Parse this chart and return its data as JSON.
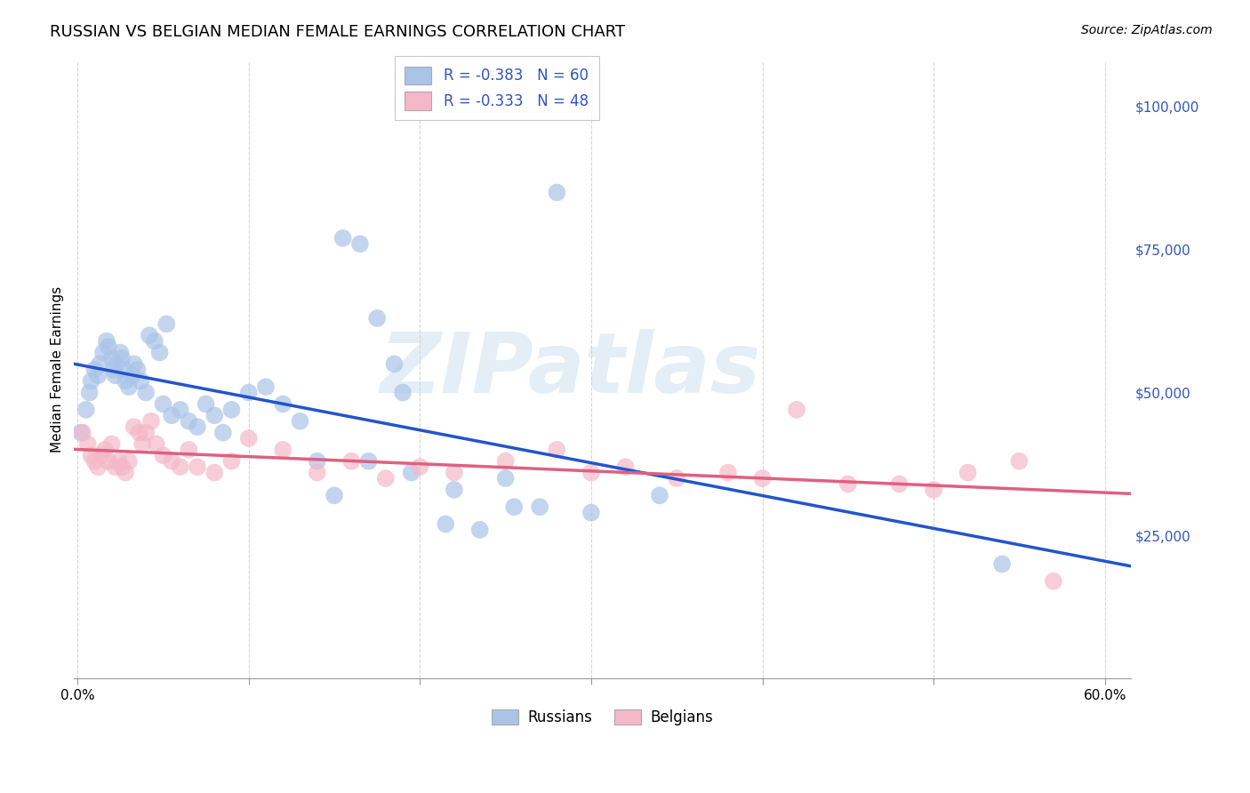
{
  "title": "RUSSIAN VS BELGIAN MEDIAN FEMALE EARNINGS CORRELATION CHART",
  "source": "Source: ZipAtlas.com",
  "ylabel": "Median Female Earnings",
  "ytick_labels": [
    "$25,000",
    "$50,000",
    "$75,000",
    "$100,000"
  ],
  "ytick_values": [
    25000,
    50000,
    75000,
    100000
  ],
  "ymin": 0,
  "ymax": 108000,
  "xmin": -0.002,
  "xmax": 0.615,
  "watermark_text": "ZIPatlas",
  "legend_entries": [
    {
      "label": "R = -0.383   N = 60",
      "color": "#aac4e8"
    },
    {
      "label": "R = -0.333   N = 48",
      "color": "#f4b8c8"
    }
  ],
  "legend_color": "#3355bb",
  "russian_color": "#aac4e8",
  "belgian_color": "#f4b8c8",
  "russian_line_color": "#2255cc",
  "belgian_line_color": "#e06080",
  "dot_size": 200,
  "russians_x": [
    0.002,
    0.005,
    0.007,
    0.008,
    0.01,
    0.012,
    0.013,
    0.015,
    0.017,
    0.018,
    0.02,
    0.021,
    0.022,
    0.023,
    0.025,
    0.026,
    0.027,
    0.028,
    0.03,
    0.032,
    0.033,
    0.035,
    0.037,
    0.04,
    0.042,
    0.045,
    0.048,
    0.05,
    0.052,
    0.055,
    0.06,
    0.065,
    0.07,
    0.075,
    0.08,
    0.085,
    0.09,
    0.1,
    0.11,
    0.12,
    0.13,
    0.14,
    0.15,
    0.17,
    0.19,
    0.22,
    0.25,
    0.27,
    0.28,
    0.3,
    0.155,
    0.165,
    0.175,
    0.185,
    0.195,
    0.215,
    0.235,
    0.255,
    0.34,
    0.54
  ],
  "russians_y": [
    43000,
    47000,
    50000,
    52000,
    54000,
    53000,
    55000,
    57000,
    59000,
    58000,
    56000,
    54000,
    53000,
    55000,
    57000,
    56000,
    54000,
    52000,
    51000,
    53000,
    55000,
    54000,
    52000,
    50000,
    60000,
    59000,
    57000,
    48000,
    62000,
    46000,
    47000,
    45000,
    44000,
    48000,
    46000,
    43000,
    47000,
    50000,
    51000,
    48000,
    45000,
    38000,
    32000,
    38000,
    50000,
    33000,
    35000,
    30000,
    85000,
    29000,
    77000,
    76000,
    63000,
    55000,
    36000,
    27000,
    26000,
    30000,
    32000,
    20000
  ],
  "belgians_x": [
    0.003,
    0.006,
    0.008,
    0.01,
    0.012,
    0.014,
    0.016,
    0.018,
    0.02,
    0.022,
    0.024,
    0.026,
    0.028,
    0.03,
    0.033,
    0.036,
    0.038,
    0.04,
    0.043,
    0.046,
    0.05,
    0.055,
    0.06,
    0.065,
    0.07,
    0.08,
    0.09,
    0.1,
    0.12,
    0.14,
    0.16,
    0.18,
    0.2,
    0.22,
    0.25,
    0.28,
    0.3,
    0.32,
    0.35,
    0.38,
    0.4,
    0.42,
    0.45,
    0.48,
    0.5,
    0.52,
    0.55,
    0.57
  ],
  "belgians_y": [
    43000,
    41000,
    39000,
    38000,
    37000,
    39000,
    40000,
    38000,
    41000,
    37000,
    38000,
    37000,
    36000,
    38000,
    44000,
    43000,
    41000,
    43000,
    45000,
    41000,
    39000,
    38000,
    37000,
    40000,
    37000,
    36000,
    38000,
    42000,
    40000,
    36000,
    38000,
    35000,
    37000,
    36000,
    38000,
    40000,
    36000,
    37000,
    35000,
    36000,
    35000,
    47000,
    34000,
    34000,
    33000,
    36000,
    38000,
    17000
  ],
  "background_color": "#ffffff",
  "grid_color": "#cccccc",
  "title_fontsize": 13,
  "source_fontsize": 10,
  "axis_label_fontsize": 11,
  "tick_fontsize": 11,
  "xtick_vals": [
    0.0,
    0.1,
    0.2,
    0.3,
    0.4,
    0.5,
    0.6
  ],
  "xtick_labels_show": [
    "0.0%",
    "",
    "",
    "",
    "",
    "",
    "60.0%"
  ]
}
